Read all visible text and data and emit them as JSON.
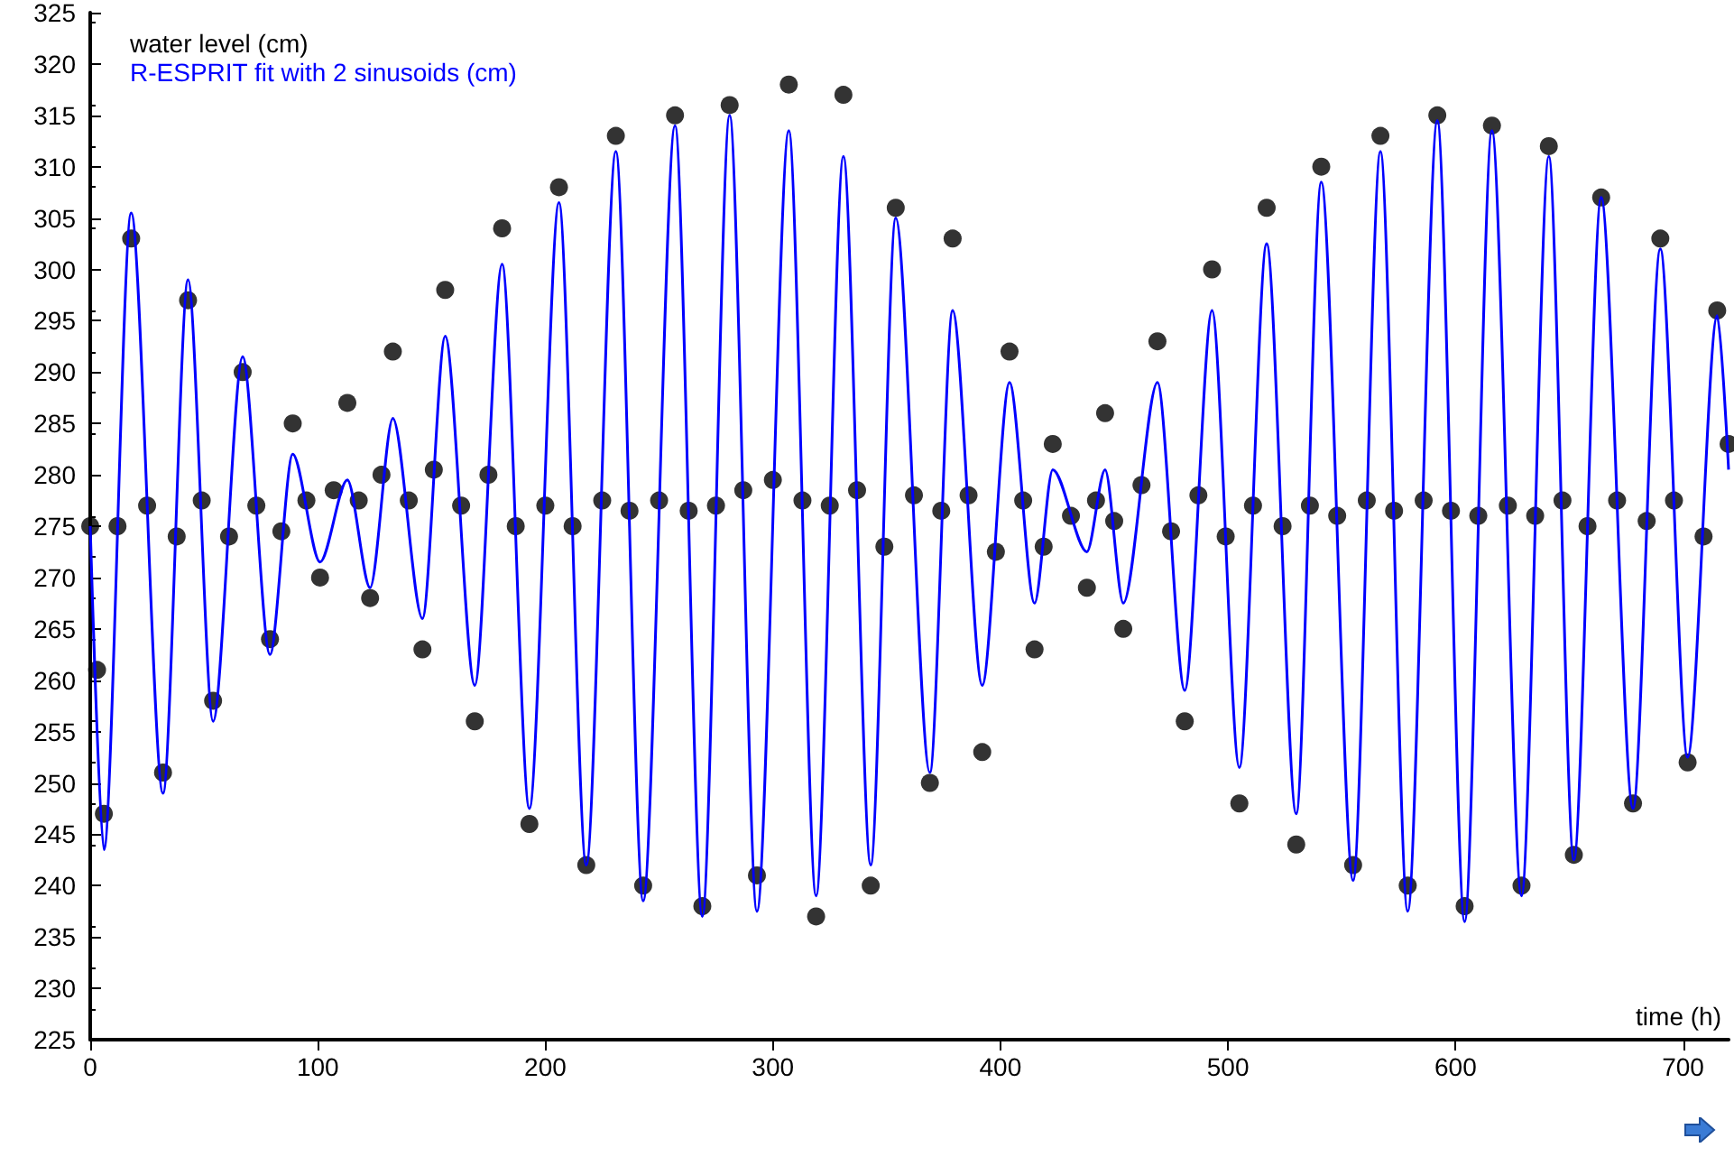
{
  "chart_data": {
    "type": "scatter",
    "xlabel": "time (h)",
    "legend": "top left",
    "grid": false,
    "marker": "circle",
    "xlim": [
      0,
      720
    ],
    "xticks": [
      0,
      100,
      200,
      300,
      400,
      500,
      600,
      700
    ],
    "ylim": [
      225,
      325
    ],
    "yticks": [
      225,
      230,
      235,
      240,
      245,
      250,
      255,
      260,
      265,
      270,
      275,
      280,
      285,
      290,
      295,
      300,
      305,
      310,
      315,
      320,
      325
    ],
    "series": [
      {
        "name": "water level (cm)",
        "color": "#000000",
        "x": [
          0,
          6,
          18,
          32,
          43,
          54,
          67,
          79,
          89,
          101,
          113,
          123,
          133,
          146,
          156,
          169,
          181,
          193,
          206,
          218,
          231,
          243,
          257,
          269,
          281,
          293,
          307,
          319,
          331,
          343,
          354,
          369,
          379,
          392,
          404,
          415,
          423,
          438,
          446,
          454,
          469,
          481,
          493,
          505,
          517,
          530,
          541,
          555,
          567,
          579,
          592,
          604,
          616,
          629,
          641,
          652,
          664,
          678,
          690,
          702,
          715,
          720,
          3,
          12,
          25,
          38,
          49,
          61,
          73,
          84,
          95,
          107,
          118,
          128,
          140,
          151,
          163,
          175,
          187,
          200,
          212,
          225,
          237,
          250,
          263,
          275,
          287,
          300,
          313,
          325,
          337,
          349,
          362,
          374,
          386,
          398,
          410,
          419,
          431,
          442,
          450,
          462,
          475,
          487,
          499,
          511,
          524,
          536,
          548,
          561,
          573,
          586,
          598,
          610,
          623,
          635,
          647,
          658,
          671,
          684,
          696,
          709
        ],
        "values": [
          275,
          247,
          303,
          251,
          297,
          258,
          290,
          264,
          285,
          270,
          287,
          268,
          292,
          263,
          298,
          256,
          304,
          246,
          308,
          242,
          313,
          240,
          315,
          238,
          316,
          241,
          318,
          237,
          317,
          240,
          306,
          250,
          303,
          253,
          292,
          263,
          283,
          269,
          286,
          265,
          293,
          256,
          300,
          248,
          306,
          244,
          310,
          242,
          313,
          240,
          315,
          238,
          314,
          240,
          312,
          243,
          307,
          248,
          303,
          252,
          296,
          283,
          261,
          275,
          277,
          274,
          277.5,
          274,
          277,
          274.5,
          277.5,
          278.5,
          277.5,
          280,
          277.5,
          280.5,
          277,
          280,
          275,
          277,
          275,
          277.5,
          276.5,
          277.5,
          276.5,
          277,
          278.5,
          279.5,
          277.5,
          277,
          278.5,
          273,
          278,
          276.5,
          278,
          272.5,
          277.5,
          273,
          276,
          277.5,
          275.5,
          279,
          274.5,
          278,
          274,
          277,
          275,
          277,
          276,
          277.5,
          276.5,
          277.5,
          276.5,
          276,
          277,
          276,
          277.5,
          275,
          277.5,
          275.5,
          277.5,
          274
        ]
      },
      {
        "name": "R-ESPRIT fit with 2 sinusoids (cm)",
        "type": "line",
        "color": "#0000ff",
        "marker": "none",
        "x": [
          0,
          6,
          18,
          32,
          43,
          54,
          67,
          79,
          89,
          101,
          113,
          123,
          133,
          146,
          156,
          169,
          181,
          193,
          206,
          218,
          231,
          243,
          257,
          269,
          281,
          293,
          307,
          319,
          331,
          343,
          354,
          369,
          379,
          392,
          404,
          415,
          423,
          438,
          446,
          454,
          469,
          481,
          493,
          505,
          517,
          530,
          541,
          555,
          567,
          579,
          592,
          604,
          616,
          629,
          641,
          652,
          664,
          678,
          690,
          702,
          715,
          720
        ],
        "values": [
          275,
          243.5,
          305.5,
          249,
          299,
          256,
          291.5,
          262.5,
          282,
          271.5,
          279.5,
          269,
          285.5,
          266,
          293.5,
          259.5,
          300.5,
          247.5,
          306.5,
          242,
          311.5,
          238.5,
          314,
          237,
          315,
          237.5,
          313.5,
          239,
          311,
          242,
          305,
          251,
          296,
          259.5,
          289,
          267.5,
          280.5,
          272.5,
          280.5,
          267.5,
          289,
          259,
          296,
          251.5,
          302.5,
          247,
          308.5,
          240.5,
          311.5,
          237.5,
          314.5,
          236.5,
          313.5,
          239,
          311,
          242.5,
          307,
          247.5,
          302,
          252.5,
          295.5,
          280.5
        ]
      }
    ]
  }
}
